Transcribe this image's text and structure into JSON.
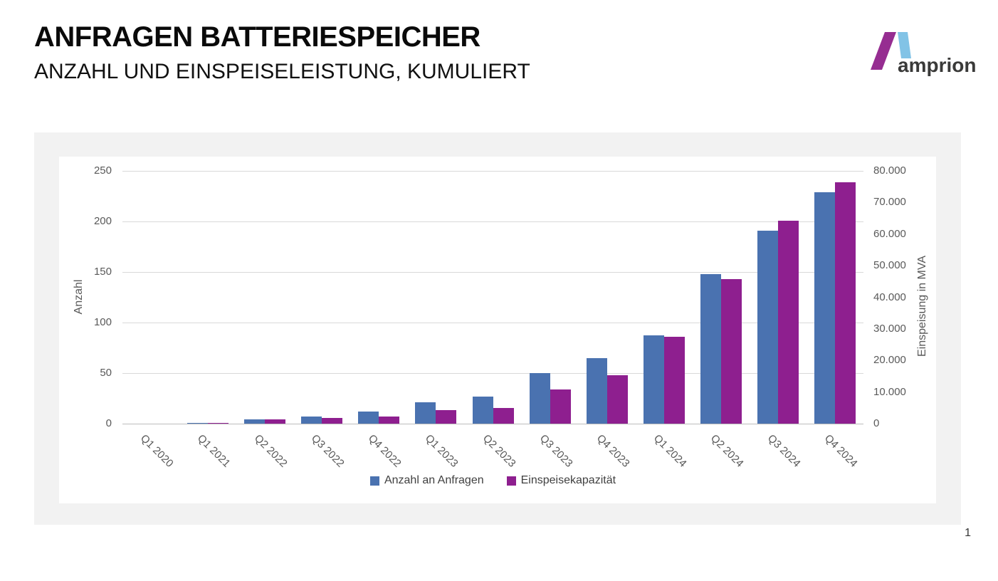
{
  "header": {
    "title": "ANFRAGEN BATTERIESPEICHER",
    "subtitle": "ANZAHL UND EINSPEISELEISTUNG, KUMULIERT"
  },
  "logo": {
    "text": "amprion",
    "purple": "#962d91",
    "blue": "#82c3e6",
    "text_color": "#3a3a39"
  },
  "page": {
    "number": "1"
  },
  "chart_data": {
    "type": "bar",
    "title": "",
    "categories": [
      "Q1 2020",
      "Q1 2021",
      "Q2 2022",
      "Q3 2022",
      "Q4 2022",
      "Q1 2023",
      "Q2 2023",
      "Q3 2023",
      "Q4 2023",
      "Q1 2024",
      "Q2 2024",
      "Q3 2024",
      "Q4 2024"
    ],
    "series": [
      {
        "name": "Anzahl an Anfragen",
        "axis": "left",
        "color": "#4a72b0",
        "values": [
          0,
          1,
          4,
          7,
          12,
          21,
          27,
          50,
          65,
          87,
          148,
          191,
          229
        ]
      },
      {
        "name": "Einspeisekapazität",
        "axis": "right",
        "color": "#8e1f8f",
        "values": [
          0,
          250,
          1300,
          1700,
          2300,
          4300,
          5000,
          10800,
          15400,
          27600,
          45700,
          64300,
          76300
        ]
      }
    ],
    "left_axis": {
      "label": "Anzahl",
      "min": 0,
      "max": 250,
      "step": 50,
      "tick_labels": [
        "0",
        "50",
        "100",
        "150",
        "200",
        "250"
      ]
    },
    "right_axis": {
      "label": "Einspeisung in MVA",
      "min": 0,
      "max": 80000,
      "step": 10000,
      "tick_labels": [
        "0",
        "10.000",
        "20.000",
        "30.000",
        "40.000",
        "50.000",
        "60.000",
        "70.000",
        "80.000"
      ]
    },
    "legend_position": "bottom",
    "grid": true,
    "grid_color": "#d9d9d9",
    "axis_line_color": "#bdbdbd",
    "tick_color": "#595959"
  }
}
